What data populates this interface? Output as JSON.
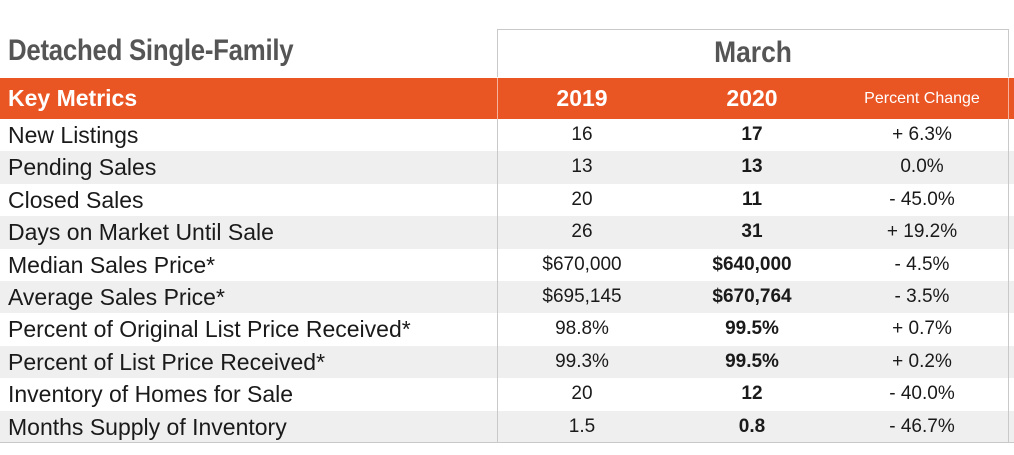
{
  "title": "Detached Single-Family",
  "period": "March",
  "header": {
    "metric": "Key Metrics",
    "year1": "2019",
    "year2": "2020",
    "change": "Percent Change"
  },
  "rows": [
    {
      "metric": "New Listings",
      "y2019": "16",
      "y2020": "17",
      "change": "+ 6.3%"
    },
    {
      "metric": "Pending Sales",
      "y2019": "13",
      "y2020": "13",
      "change": "0.0%"
    },
    {
      "metric": "Closed Sales",
      "y2019": "20",
      "y2020": "11",
      "change": "- 45.0%"
    },
    {
      "metric": "Days on Market Until Sale",
      "y2019": "26",
      "y2020": "31",
      "change": "+ 19.2%"
    },
    {
      "metric": "Median Sales Price*",
      "y2019": "$670,000",
      "y2020": "$640,000",
      "change": "- 4.5%"
    },
    {
      "metric": "Average Sales Price*",
      "y2019": "$695,145",
      "y2020": "$670,764",
      "change": "- 3.5%"
    },
    {
      "metric": "Percent of Original List Price Received*",
      "y2019": "98.8%",
      "y2020": "99.5%",
      "change": "+ 0.7%"
    },
    {
      "metric": "Percent of List Price Received*",
      "y2019": "99.3%",
      "y2020": "99.5%",
      "change": "+ 0.2%"
    },
    {
      "metric": "Inventory of Homes for Sale",
      "y2019": "20",
      "y2020": "12",
      "change": "- 40.0%"
    },
    {
      "metric": "Months Supply of Inventory",
      "y2019": "1.5",
      "y2020": "0.8",
      "change": "- 46.7%"
    }
  ],
  "colors": {
    "header_bg": "#ea5524",
    "title_text": "#555555",
    "stripe": "#efefef"
  }
}
